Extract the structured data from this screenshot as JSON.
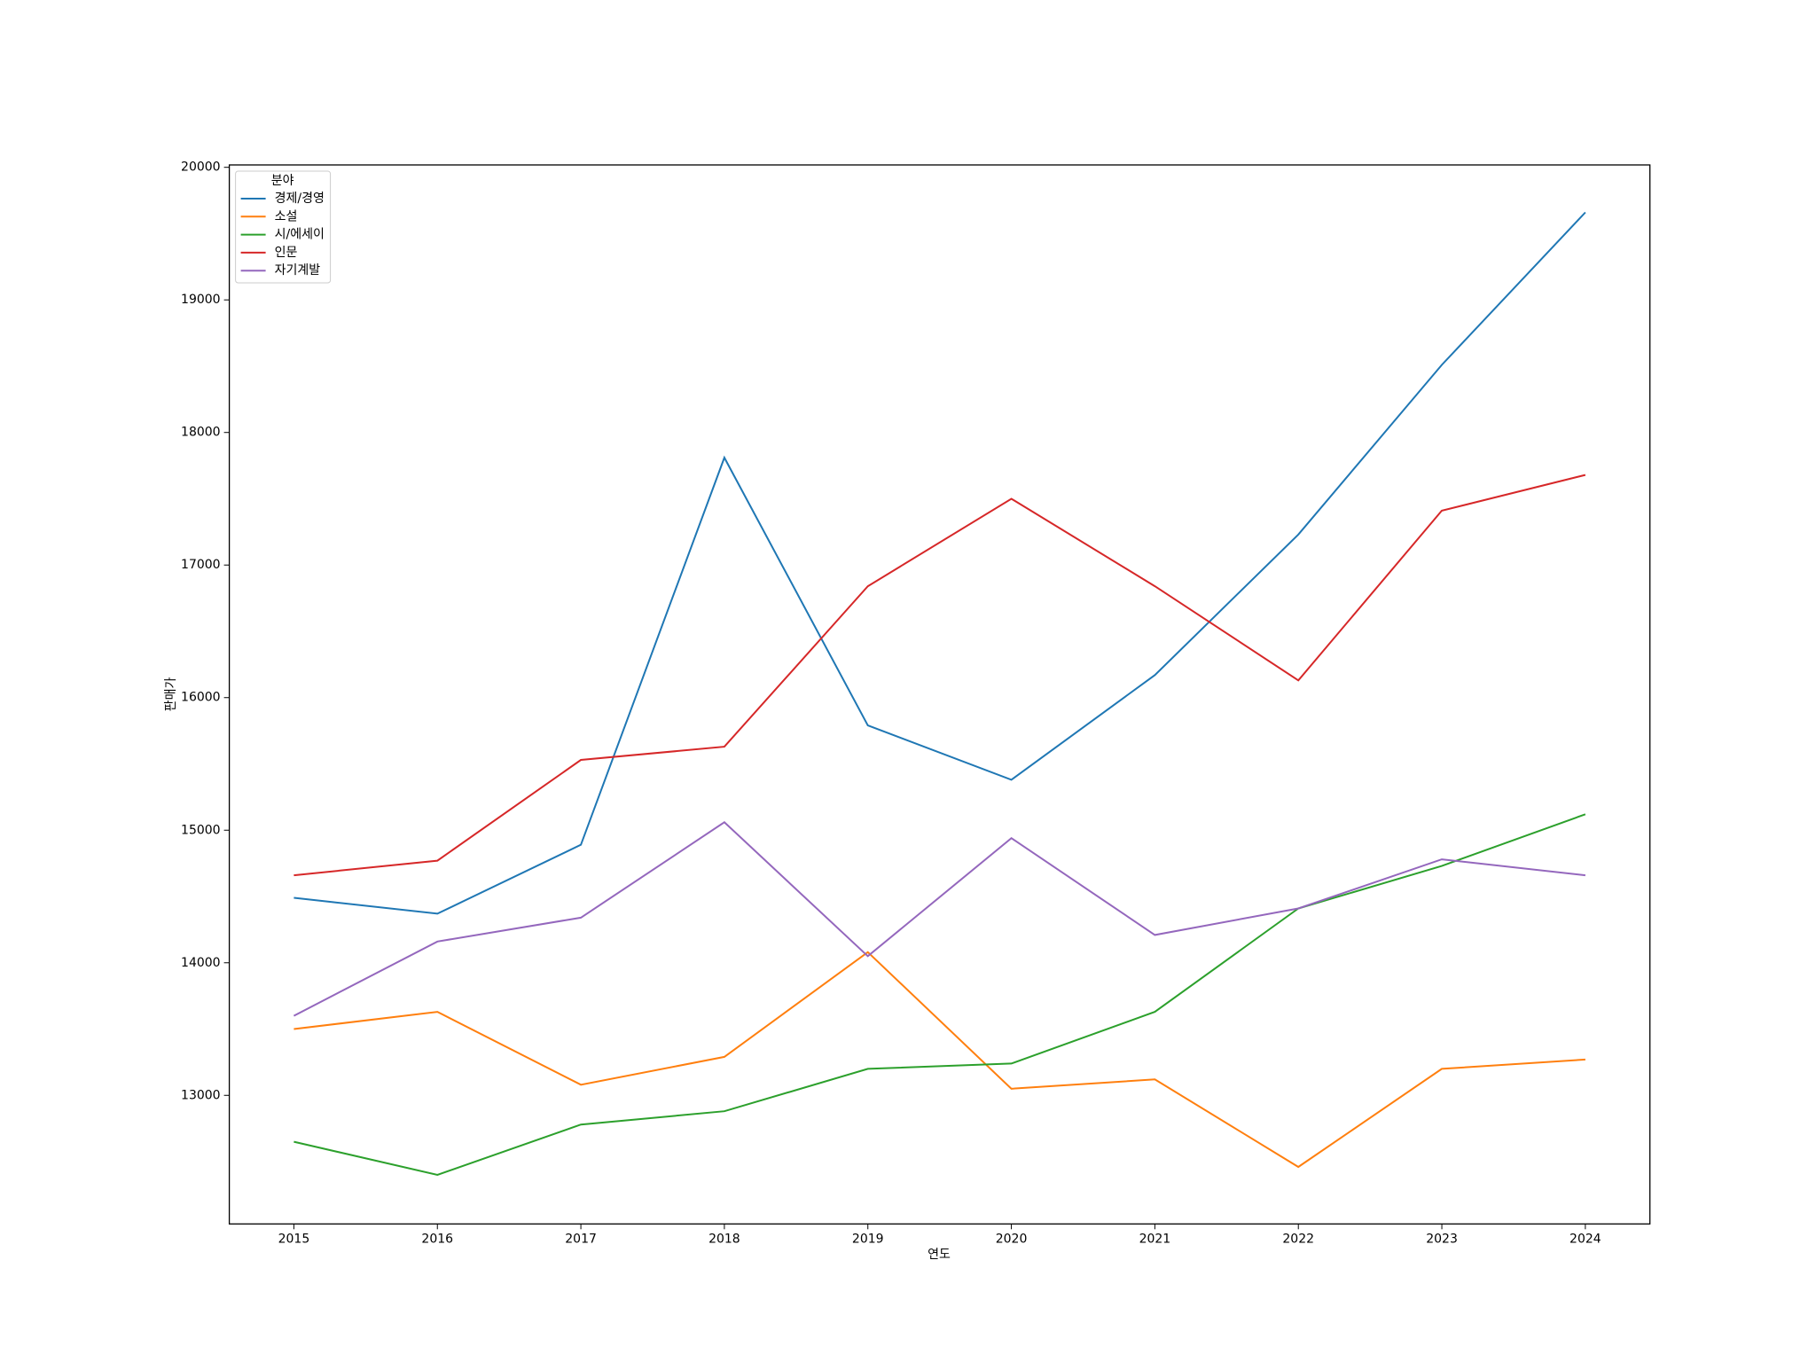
{
  "chart_data": {
    "type": "line",
    "x_label": "연도",
    "y_label": "판매가",
    "x": [
      2015,
      2016,
      2017,
      2018,
      2019,
      2020,
      2021,
      2022,
      2023,
      2024
    ],
    "xlim": [
      2014.55,
      2024.45
    ],
    "xticks": [
      2015,
      2016,
      2017,
      2018,
      2019,
      2020,
      2021,
      2022,
      2023,
      2024
    ],
    "ylim": [
      12030,
      20018
    ],
    "yticks": [
      13000,
      14000,
      15000,
      16000,
      17000,
      18000,
      19000,
      20000
    ],
    "grid": false,
    "legend_title": "분야",
    "legend_position": "upper-left",
    "series": [
      {
        "name": "경제/경영",
        "color": "#1f77b4",
        "values": [
          14490,
          14370,
          14890,
          17810,
          15790,
          15380,
          16170,
          17230,
          18510,
          19660
        ]
      },
      {
        "name": "소설",
        "color": "#ff7f0e",
        "values": [
          13500,
          13630,
          13080,
          13290,
          14080,
          13050,
          13120,
          12460,
          13200,
          13270
        ]
      },
      {
        "name": "시/에세이",
        "color": "#2ca02c",
        "values": [
          12650,
          12400,
          12780,
          12880,
          13200,
          13240,
          13630,
          14410,
          14730,
          15120
        ]
      },
      {
        "name": "인문",
        "color": "#d62728",
        "values": [
          14660,
          14770,
          15530,
          15630,
          16840,
          17500,
          16840,
          16130,
          17410,
          17680
        ]
      },
      {
        "name": "자기계발",
        "color": "#9467bd",
        "values": [
          13600,
          14160,
          14340,
          15060,
          14050,
          14940,
          14210,
          14410,
          14780,
          14660
        ]
      }
    ]
  }
}
